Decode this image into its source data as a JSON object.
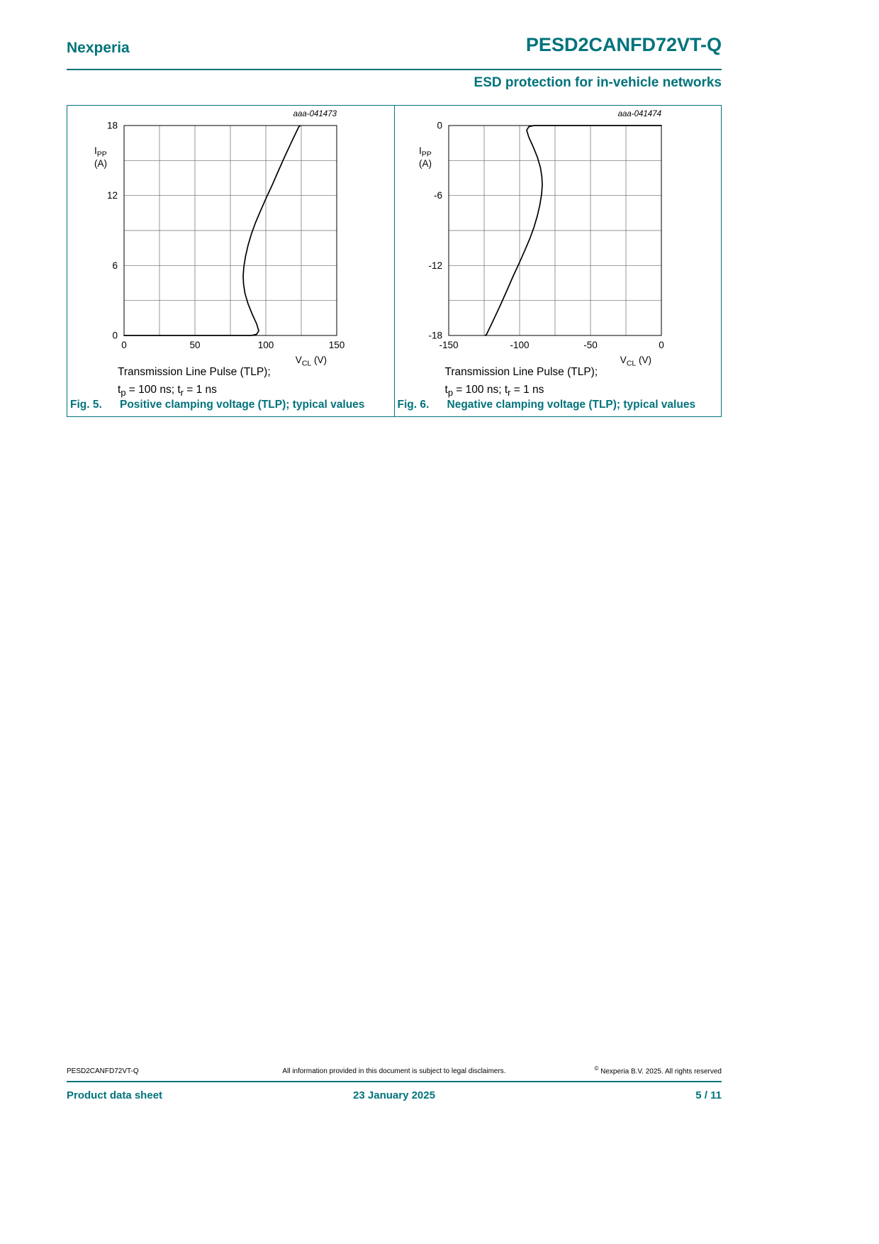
{
  "colors": {
    "accent_teal": "#00737B"
  },
  "header": {
    "brand": "Nexperia",
    "part_number": "PESD2CANFD72VT-Q",
    "subtitle": "ESD protection for in-vehicle networks"
  },
  "figures": [
    {
      "plot_id": "aaa-041473",
      "fig_label": "Fig. 5.",
      "fig_title": "Positive clamping voltage (TLP); typical values",
      "cond_line1": "Transmission Line Pulse (TLP);",
      "cond_line2": {
        "p1": "t",
        "sub1": "p",
        "p2": " = 100 ns; t",
        "sub2": "r",
        "p3": " = 1 ns"
      }
    },
    {
      "plot_id": "aaa-041474",
      "fig_label": "Fig. 6.",
      "fig_title": "Negative clamping voltage (TLP); typical values",
      "cond_line1": "Transmission Line Pulse (TLP);",
      "cond_line2": {
        "p1": "t",
        "sub1": "p",
        "p2": " = 100 ns; t",
        "sub2": "r",
        "p3": " = 1 ns"
      }
    }
  ],
  "footer": {
    "doc_id": "PESD2CANFD72VT-Q",
    "disclaimer": "All information provided in this document is subject to legal disclaimers.",
    "copyright_sign": "©",
    "copyright": " Nexperia B.V. 2025. All rights reserved",
    "doc_type": "Product data sheet",
    "date": "23 January 2025",
    "page": "5 / 11"
  },
  "chart_data": [
    {
      "type": "line",
      "plot_id": "aaa-041473",
      "title": "Positive clamping voltage (TLP); typical values",
      "conditions": "Transmission Line Pulse (TLP); tp = 100 ns; tr = 1 ns",
      "xlabel": "VCL (V)",
      "ylabel": "IPP (A)",
      "xlabel_parts": {
        "base": "V",
        "sub": "CL",
        "unit": " (V)"
      },
      "ylabel_parts": {
        "base": "I",
        "sub": "PP",
        "unit": "(A)"
      },
      "xlim": [
        0,
        150
      ],
      "ylim": [
        0,
        18
      ],
      "xticks": [
        0,
        50,
        100,
        150
      ],
      "yticks": [
        0,
        6,
        12,
        18
      ],
      "x_grid_step": 25,
      "y_grid_step": 3,
      "grid": true,
      "legend": false,
      "series": [
        {
          "name": "typical",
          "points": [
            [
              0,
              0
            ],
            [
              60,
              0
            ],
            [
              80,
              0
            ],
            [
              90,
              0
            ],
            [
              93.5,
              0.1
            ],
            [
              95,
              0.4
            ],
            [
              93.5,
              1
            ],
            [
              90.5,
              1.8
            ],
            [
              87.5,
              2.7
            ],
            [
              85.3,
              3.6
            ],
            [
              84.3,
              4.4
            ],
            [
              84,
              5.1
            ],
            [
              84.5,
              5.9
            ],
            [
              85.7,
              6.8
            ],
            [
              87.4,
              7.7
            ],
            [
              89.8,
              8.7
            ],
            [
              92.8,
              9.7
            ],
            [
              96.3,
              10.7
            ],
            [
              100.3,
              11.8
            ],
            [
              104.5,
              12.9
            ],
            [
              108.8,
              14.1
            ],
            [
              113.2,
              15.3
            ],
            [
              117.4,
              16.4
            ],
            [
              120.9,
              17.3
            ],
            [
              123.3,
              17.9
            ],
            [
              124.3,
              18
            ]
          ]
        }
      ]
    },
    {
      "type": "line",
      "plot_id": "aaa-041474",
      "title": "Negative clamping voltage (TLP); typical values",
      "conditions": "Transmission Line Pulse (TLP); tp = 100 ns; tr = 1 ns",
      "xlabel": "VCL (V)",
      "ylabel": "IPP (A)",
      "xlabel_parts": {
        "base": "V",
        "sub": "CL",
        "unit": " (V)"
      },
      "ylabel_parts": {
        "base": "I",
        "sub": "PP",
        "unit": "(A)"
      },
      "xlim": [
        -150,
        0
      ],
      "ylim": [
        -18,
        0
      ],
      "xticks": [
        -150,
        -100,
        -50,
        0
      ],
      "yticks": [
        0,
        -6,
        -12,
        -18
      ],
      "x_grid_step": 25,
      "y_grid_step": 3,
      "grid": true,
      "legend": false,
      "series": [
        {
          "name": "typical",
          "points": [
            [
              0,
              0
            ],
            [
              -60,
              0
            ],
            [
              -80,
              0
            ],
            [
              -90,
              0
            ],
            [
              -93.5,
              -0.1
            ],
            [
              -95,
              -0.4
            ],
            [
              -93.5,
              -1
            ],
            [
              -90.5,
              -1.8
            ],
            [
              -87.5,
              -2.7
            ],
            [
              -85.3,
              -3.6
            ],
            [
              -84.3,
              -4.4
            ],
            [
              -84,
              -5.1
            ],
            [
              -84.5,
              -5.9
            ],
            [
              -85.7,
              -6.8
            ],
            [
              -87.4,
              -7.7
            ],
            [
              -89.8,
              -8.7
            ],
            [
              -92.8,
              -9.7
            ],
            [
              -96.3,
              -10.7
            ],
            [
              -100.3,
              -11.8
            ],
            [
              -104.5,
              -12.9
            ],
            [
              -108.8,
              -14.1
            ],
            [
              -113.2,
              -15.3
            ],
            [
              -117.4,
              -16.4
            ],
            [
              -120.9,
              -17.3
            ],
            [
              -123.3,
              -17.9
            ],
            [
              -124.3,
              -18
            ]
          ]
        }
      ]
    }
  ]
}
